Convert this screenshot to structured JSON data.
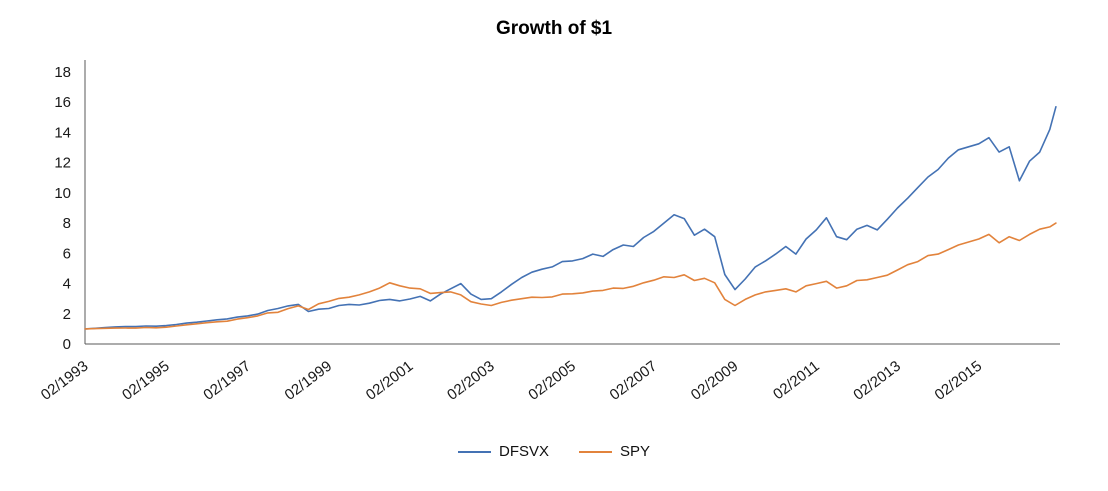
{
  "chart_data": {
    "type": "line",
    "title": "Growth of $1",
    "xlabel": "",
    "ylabel": "",
    "grid": false,
    "legend_position": "bottom",
    "axis_color": "#595959",
    "text_color": "#1a1a1a",
    "ylim": [
      0,
      18
    ],
    "y_ticks": [
      0,
      2,
      4,
      6,
      8,
      10,
      12,
      14,
      16,
      18
    ],
    "xlim": [
      1993.1,
      2017.1
    ],
    "x_ticks": [
      {
        "value": 1993.1,
        "label": "02/1993"
      },
      {
        "value": 1995.1,
        "label": "02/1995"
      },
      {
        "value": 1997.1,
        "label": "02/1997"
      },
      {
        "value": 1999.1,
        "label": "02/1999"
      },
      {
        "value": 2001.1,
        "label": "02/2001"
      },
      {
        "value": 2003.1,
        "label": "02/2003"
      },
      {
        "value": 2005.1,
        "label": "02/2005"
      },
      {
        "value": 2007.1,
        "label": "02/2007"
      },
      {
        "value": 2009.1,
        "label": "02/2009"
      },
      {
        "value": 2011.1,
        "label": "02/2011"
      },
      {
        "value": 2013.1,
        "label": "02/2013"
      },
      {
        "value": 2015.1,
        "label": "02/2015"
      }
    ],
    "x": [
      1993.1,
      1993.35,
      1993.6,
      1993.85,
      1994.1,
      1994.35,
      1994.6,
      1994.85,
      1995.1,
      1995.35,
      1995.6,
      1995.85,
      1996.1,
      1996.35,
      1996.6,
      1996.85,
      1997.1,
      1997.35,
      1997.6,
      1997.85,
      1998.1,
      1998.35,
      1998.6,
      1998.85,
      1999.1,
      1999.35,
      1999.6,
      1999.85,
      2000.1,
      2000.35,
      2000.6,
      2000.85,
      2001.1,
      2001.35,
      2001.6,
      2001.85,
      2002.1,
      2002.35,
      2002.6,
      2002.85,
      2003.1,
      2003.35,
      2003.6,
      2003.85,
      2004.1,
      2004.35,
      2004.6,
      2004.85,
      2005.1,
      2005.35,
      2005.6,
      2005.85,
      2006.1,
      2006.35,
      2006.6,
      2006.85,
      2007.1,
      2007.35,
      2007.6,
      2007.85,
      2008.1,
      2008.35,
      2008.6,
      2008.85,
      2009.1,
      2009.35,
      2009.6,
      2009.85,
      2010.1,
      2010.35,
      2010.6,
      2010.85,
      2011.1,
      2011.35,
      2011.6,
      2011.85,
      2012.1,
      2012.35,
      2012.6,
      2012.85,
      2013.1,
      2013.35,
      2013.6,
      2013.85,
      2014.1,
      2014.35,
      2014.6,
      2014.85,
      2015.1,
      2015.35,
      2015.6,
      2015.85,
      2016.1,
      2016.35,
      2016.6,
      2016.85,
      2017.0
    ],
    "series": [
      {
        "name": "DFSVX",
        "color": "#4472b4",
        "values": [
          1.0,
          1.04,
          1.09,
          1.13,
          1.16,
          1.15,
          1.19,
          1.18,
          1.22,
          1.29,
          1.38,
          1.44,
          1.52,
          1.6,
          1.66,
          1.78,
          1.86,
          1.98,
          2.22,
          2.35,
          2.52,
          2.62,
          2.15,
          2.3,
          2.35,
          2.55,
          2.62,
          2.58,
          2.7,
          2.88,
          2.95,
          2.85,
          2.98,
          3.15,
          2.85,
          3.3,
          3.65,
          4.0,
          3.3,
          2.95,
          3.0,
          3.45,
          3.95,
          4.4,
          4.75,
          4.95,
          5.1,
          5.45,
          5.5,
          5.65,
          5.95,
          5.8,
          6.25,
          6.55,
          6.45,
          7.05,
          7.45,
          8.0,
          8.55,
          8.3,
          7.2,
          7.6,
          7.1,
          4.6,
          3.6,
          4.3,
          5.1,
          5.5,
          5.95,
          6.45,
          5.95,
          6.95,
          7.55,
          8.35,
          7.1,
          6.9,
          7.6,
          7.85,
          7.55,
          8.25,
          9.0,
          9.65,
          10.35,
          11.05,
          11.55,
          12.3,
          12.85,
          13.05,
          13.25,
          13.65,
          12.7,
          13.05,
          10.8,
          12.1,
          12.7,
          14.2,
          15.7
        ]
      },
      {
        "name": "SPY",
        "color": "#e2833c",
        "values": [
          1.0,
          1.02,
          1.04,
          1.05,
          1.06,
          1.05,
          1.09,
          1.07,
          1.11,
          1.19,
          1.27,
          1.34,
          1.41,
          1.47,
          1.51,
          1.65,
          1.74,
          1.86,
          2.06,
          2.1,
          2.34,
          2.52,
          2.28,
          2.66,
          2.82,
          3.02,
          3.1,
          3.25,
          3.45,
          3.7,
          4.05,
          3.85,
          3.7,
          3.65,
          3.35,
          3.4,
          3.45,
          3.25,
          2.8,
          2.65,
          2.55,
          2.75,
          2.9,
          3.0,
          3.1,
          3.08,
          3.12,
          3.3,
          3.32,
          3.38,
          3.5,
          3.55,
          3.7,
          3.68,
          3.82,
          4.05,
          4.22,
          4.45,
          4.4,
          4.58,
          4.2,
          4.35,
          4.05,
          2.95,
          2.55,
          2.95,
          3.25,
          3.45,
          3.55,
          3.65,
          3.45,
          3.85,
          4.0,
          4.15,
          3.7,
          3.85,
          4.2,
          4.25,
          4.4,
          4.55,
          4.9,
          5.25,
          5.45,
          5.85,
          5.95,
          6.25,
          6.55,
          6.75,
          6.95,
          7.25,
          6.7,
          7.1,
          6.85,
          7.25,
          7.6,
          7.75,
          8.0
        ]
      }
    ]
  }
}
